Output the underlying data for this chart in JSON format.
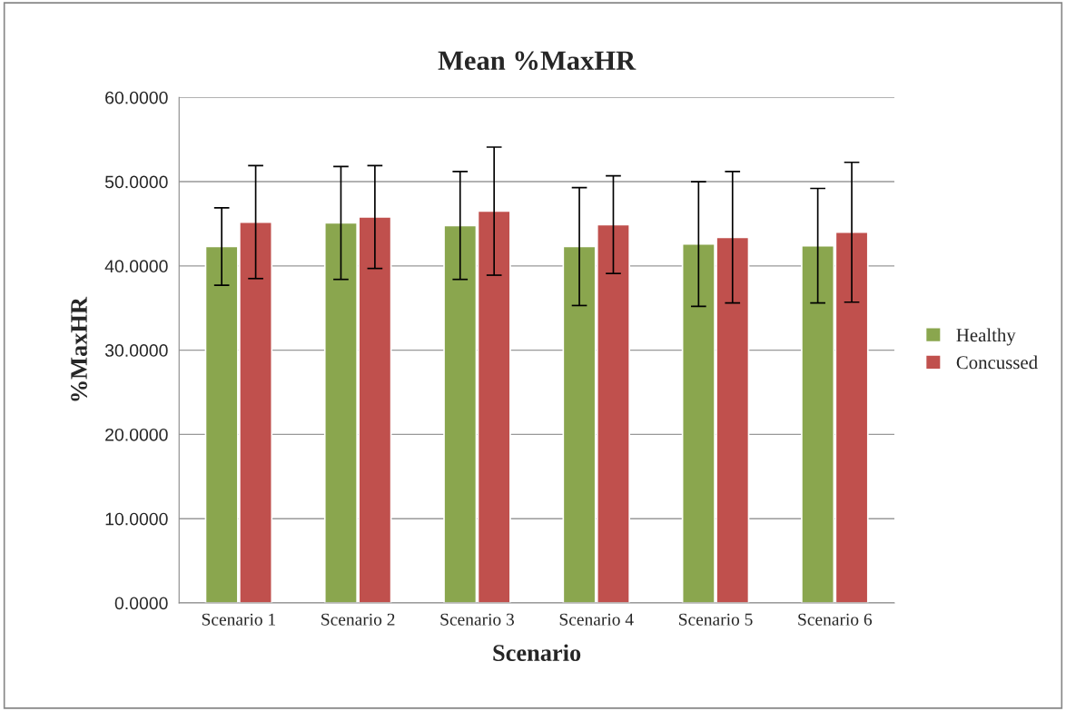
{
  "chart_data": {
    "type": "bar",
    "title": "Mean %MaxHR",
    "xlabel": "Scenario",
    "ylabel": "%MaxHR",
    "categories": [
      "Scenario 1",
      "Scenario 2",
      "Scenario 3",
      "Scenario 4",
      "Scenario 5",
      "Scenario 6"
    ],
    "series": [
      {
        "name": "Healthy",
        "color": "#8aa64e",
        "values": [
          42.3,
          45.1,
          44.8,
          42.3,
          42.6,
          42.4
        ],
        "errors": [
          4.6,
          6.7,
          6.4,
          7.0,
          7.4,
          6.8
        ]
      },
      {
        "name": "Concussed",
        "color": "#c0504d",
        "values": [
          45.2,
          45.8,
          46.5,
          44.9,
          43.4,
          44.0
        ],
        "errors": [
          6.7,
          6.1,
          7.6,
          5.8,
          7.8,
          8.3
        ]
      }
    ],
    "ylim": [
      0,
      60
    ],
    "yticks": [
      {
        "value": 0,
        "label": "0.0000"
      },
      {
        "value": 10,
        "label": "10.0000"
      },
      {
        "value": 20,
        "label": "20.0000"
      },
      {
        "value": 30,
        "label": "30.0000"
      },
      {
        "value": 40,
        "label": "40.0000"
      },
      {
        "value": 50,
        "label": "50.0000"
      },
      {
        "value": 60,
        "label": "60.0000"
      }
    ],
    "grid": "y",
    "legend": "right"
  }
}
